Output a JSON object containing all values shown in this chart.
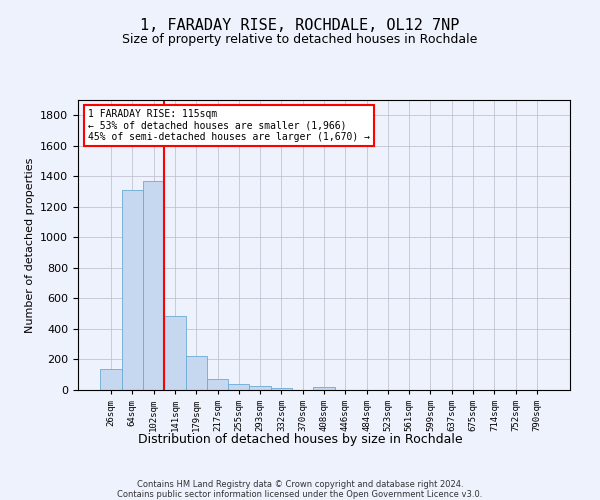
{
  "title": "1, FARADAY RISE, ROCHDALE, OL12 7NP",
  "subtitle": "Size of property relative to detached houses in Rochdale",
  "xlabel": "Distribution of detached houses by size in Rochdale",
  "ylabel": "Number of detached properties",
  "bar_labels": [
    "26sqm",
    "64sqm",
    "102sqm",
    "141sqm",
    "179sqm",
    "217sqm",
    "255sqm",
    "293sqm",
    "332sqm",
    "370sqm",
    "408sqm",
    "446sqm",
    "484sqm",
    "523sqm",
    "561sqm",
    "599sqm",
    "637sqm",
    "675sqm",
    "714sqm",
    "752sqm",
    "790sqm"
  ],
  "bar_values": [
    135,
    1310,
    1370,
    485,
    225,
    70,
    40,
    25,
    15,
    0,
    20,
    0,
    0,
    0,
    0,
    0,
    0,
    0,
    0,
    0,
    0
  ],
  "bar_color": "#c5d8f0",
  "bar_edge_color": "#6aaad4",
  "property_line_x": 2.5,
  "property_line_color": "red",
  "annotation_text": "1 FARADAY RISE: 115sqm\n← 53% of detached houses are smaller (1,966)\n45% of semi-detached houses are larger (1,670) →",
  "annotation_box_color": "white",
  "annotation_box_edge": "red",
  "ylim": [
    0,
    1900
  ],
  "yticks": [
    0,
    200,
    400,
    600,
    800,
    1000,
    1200,
    1400,
    1600,
    1800
  ],
  "footer": "Contains HM Land Registry data © Crown copyright and database right 2024.\nContains public sector information licensed under the Open Government Licence v3.0.",
  "background_color": "#eef2fc",
  "plot_background": "#eef2fc",
  "grid_color": "#bbbbcc"
}
